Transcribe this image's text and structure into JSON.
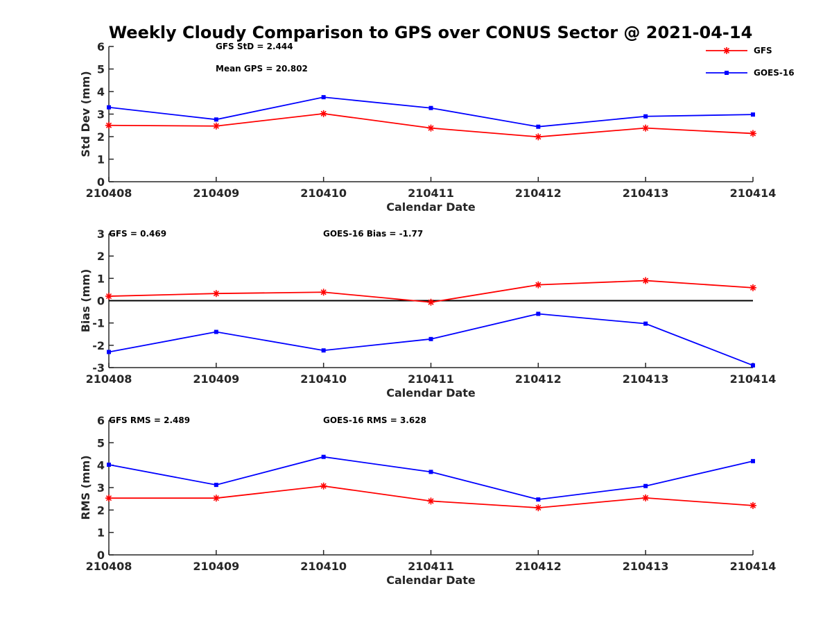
{
  "title": "Weekly Cloudy Comparison to GPS over CONUS Sector @ 2021-04-14",
  "colors": {
    "gfs": "#ff0000",
    "goes16": "#0000ff",
    "axis": "#262626",
    "zero_line": "#000000"
  },
  "legend": {
    "placement": "top-right",
    "entries": [
      "GFS",
      "GOES-16"
    ]
  },
  "chart_data": [
    {
      "type": "line",
      "x": [
        "210408",
        "210409",
        "210410",
        "210411",
        "210412",
        "210413",
        "210414"
      ],
      "xlabel": "Calendar Date",
      "ylabel": "Std Dev (mm)",
      "ylim": [
        0,
        6
      ],
      "yticks": [
        "0",
        "1",
        "2",
        "3",
        "4",
        "5",
        "6"
      ],
      "grid": false,
      "annotations": [
        "GFS StD = 2.444",
        "Mean GPS = 20.802"
      ],
      "series": [
        {
          "name": "GFS",
          "marker": "asterisk",
          "values": [
            2.5,
            2.47,
            3.02,
            2.38,
            1.99,
            2.38,
            2.14
          ]
        },
        {
          "name": "GOES-16",
          "marker": "square",
          "values": [
            3.3,
            2.76,
            3.75,
            3.27,
            2.44,
            2.9,
            2.98
          ]
        }
      ]
    },
    {
      "type": "line",
      "x": [
        "210408",
        "210409",
        "210410",
        "210411",
        "210412",
        "210413",
        "210414"
      ],
      "xlabel": "Calendar Date",
      "ylabel": "Bias (mm)",
      "ylim": [
        -3,
        3
      ],
      "yticks": [
        "-3",
        "-2",
        "-1",
        "0",
        "1",
        "2",
        "3"
      ],
      "grid": false,
      "zero_line": true,
      "annotations": [
        "GFS = 0.469",
        "GOES-16 Bias  = -1.77"
      ],
      "series": [
        {
          "name": "GFS",
          "marker": "asterisk",
          "values": [
            0.2,
            0.32,
            0.38,
            -0.07,
            0.71,
            0.9,
            0.58
          ]
        },
        {
          "name": "GOES-16",
          "marker": "square",
          "values": [
            -2.3,
            -1.4,
            -2.23,
            -1.72,
            -0.59,
            -1.03,
            -2.9
          ]
        }
      ]
    },
    {
      "type": "line",
      "x": [
        "210408",
        "210409",
        "210410",
        "210411",
        "210412",
        "210413",
        "210414"
      ],
      "xlabel": "Calendar Date",
      "ylabel": "RMS (mm)",
      "ylim": [
        0,
        6
      ],
      "yticks": [
        "0",
        "1",
        "2",
        "3",
        "4",
        "5",
        "6"
      ],
      "grid": false,
      "annotations": [
        "GFS RMS = 2.489",
        "GOES-16 RMS = 3.628"
      ],
      "series": [
        {
          "name": "GFS",
          "marker": "asterisk",
          "values": [
            2.53,
            2.53,
            3.07,
            2.4,
            2.1,
            2.54,
            2.2
          ]
        },
        {
          "name": "GOES-16",
          "marker": "square",
          "values": [
            4.02,
            3.12,
            4.37,
            3.7,
            2.47,
            3.07,
            4.18
          ]
        }
      ]
    }
  ]
}
